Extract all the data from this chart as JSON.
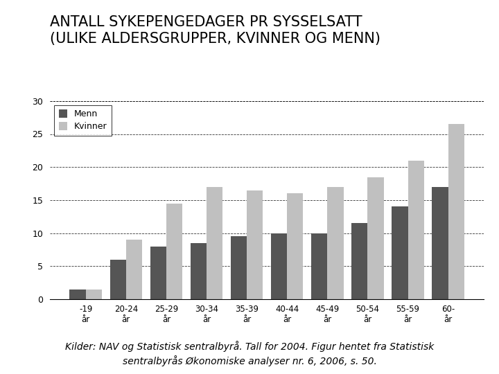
{
  "title": "ANTALL SYKEPENGEDAGER PR SYSSELSATT\n(ULIKE ALDERSGRUPPER, KVINNER OG MENN)",
  "categories": [
    "-19\når",
    "20-24\når",
    "25-29\når",
    "30-34\når",
    "35-39\når",
    "40-44\når",
    "45-49\når",
    "50-54\når",
    "55-59\når",
    "60-\når"
  ],
  "menn": [
    1.5,
    6.0,
    8.0,
    8.5,
    9.5,
    10.0,
    10.0,
    11.5,
    14.0,
    17.0
  ],
  "kvinner": [
    1.5,
    9.0,
    14.5,
    17.0,
    16.5,
    16.0,
    17.0,
    18.5,
    21.0,
    26.5
  ],
  "menn_color": "#555555",
  "kvinner_color": "#c0c0c0",
  "ylim": [
    0,
    30
  ],
  "yticks": [
    0,
    5,
    10,
    15,
    20,
    25,
    30
  ],
  "legend_labels": [
    "Menn",
    "Kvinner"
  ],
  "footnote": "Kilder: NAV og Statistisk sentralbyrå. Tall for 2004. Figur hentet fra Statistisk\nsentralbyrås Økonomiske analyser nr. 6, 2006, s. 50.",
  "background_color": "#ffffff",
  "title_fontsize": 15,
  "footnote_fontsize": 10
}
